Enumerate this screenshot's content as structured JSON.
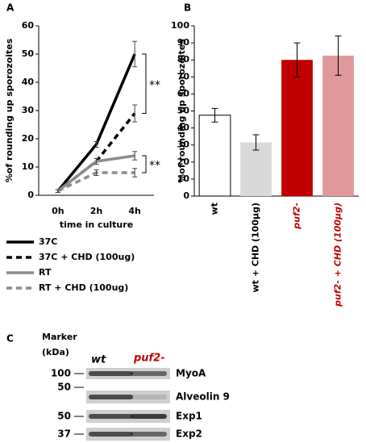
{
  "panel_labels": [
    "A",
    "B",
    "C"
  ],
  "chart_data": [
    {
      "type": "line",
      "xlabel": "time in culture",
      "ylabel": "%of rounding up sporozoites",
      "categories": [
        "0h",
        "2h",
        "4h"
      ],
      "ylim": [
        0,
        60
      ],
      "yticks": [
        0,
        10,
        20,
        30,
        40,
        50,
        60
      ],
      "annotations": [
        "**",
        "**"
      ],
      "series": [
        {
          "name": "37C",
          "color": "#000000",
          "dash": false,
          "values": [
            1.5,
            18,
            50
          ],
          "errors": [
            0.5,
            1,
            4.5
          ]
        },
        {
          "name": "37C + CHD (100ug)",
          "color": "#000000",
          "dash": true,
          "values": [
            1.5,
            12,
            29
          ],
          "errors": [
            0.5,
            1,
            3
          ]
        },
        {
          "name": "RT",
          "color": "#8c8c8c",
          "dash": false,
          "values": [
            1.5,
            12,
            14
          ],
          "errors": [
            0.5,
            1,
            1.5
          ]
        },
        {
          "name": "RT + CHD (100ug)",
          "color": "#8c8c8c",
          "dash": true,
          "values": [
            1.5,
            8,
            8
          ],
          "errors": [
            0.5,
            1,
            1.5
          ]
        }
      ]
    },
    {
      "type": "bar",
      "ylabel": "%of rounding up sporozoites",
      "categories": [
        "wt",
        "wt + CHD (100µg)",
        "puf2-",
        "puf2- + CHD (100µg)"
      ],
      "category_colors": [
        "#000000",
        "#000000",
        "#c00000",
        "#c00000"
      ],
      "colors": [
        "#ffffff",
        "#d9d9d9",
        "#c00000",
        "#e0999b"
      ],
      "values": [
        47.5,
        31.5,
        80,
        82.5
      ],
      "errors": [
        4,
        4.5,
        10,
        11.5
      ],
      "ylim": [
        0,
        100
      ],
      "yticks": [
        0,
        10,
        20,
        30,
        40,
        50,
        60,
        70,
        80,
        90,
        100
      ]
    }
  ],
  "blot": {
    "marker_title": "Marker",
    "marker_unit": "(kDa)",
    "lanes": [
      "wt",
      "puf2-"
    ],
    "rows": [
      {
        "marker": "100",
        "protein": "MyoA"
      },
      {
        "marker": "50",
        "protein": "Alveolin 9"
      },
      {
        "marker": "50",
        "protein": "Exp1"
      },
      {
        "marker": "37",
        "protein": "Exp2"
      }
    ]
  }
}
